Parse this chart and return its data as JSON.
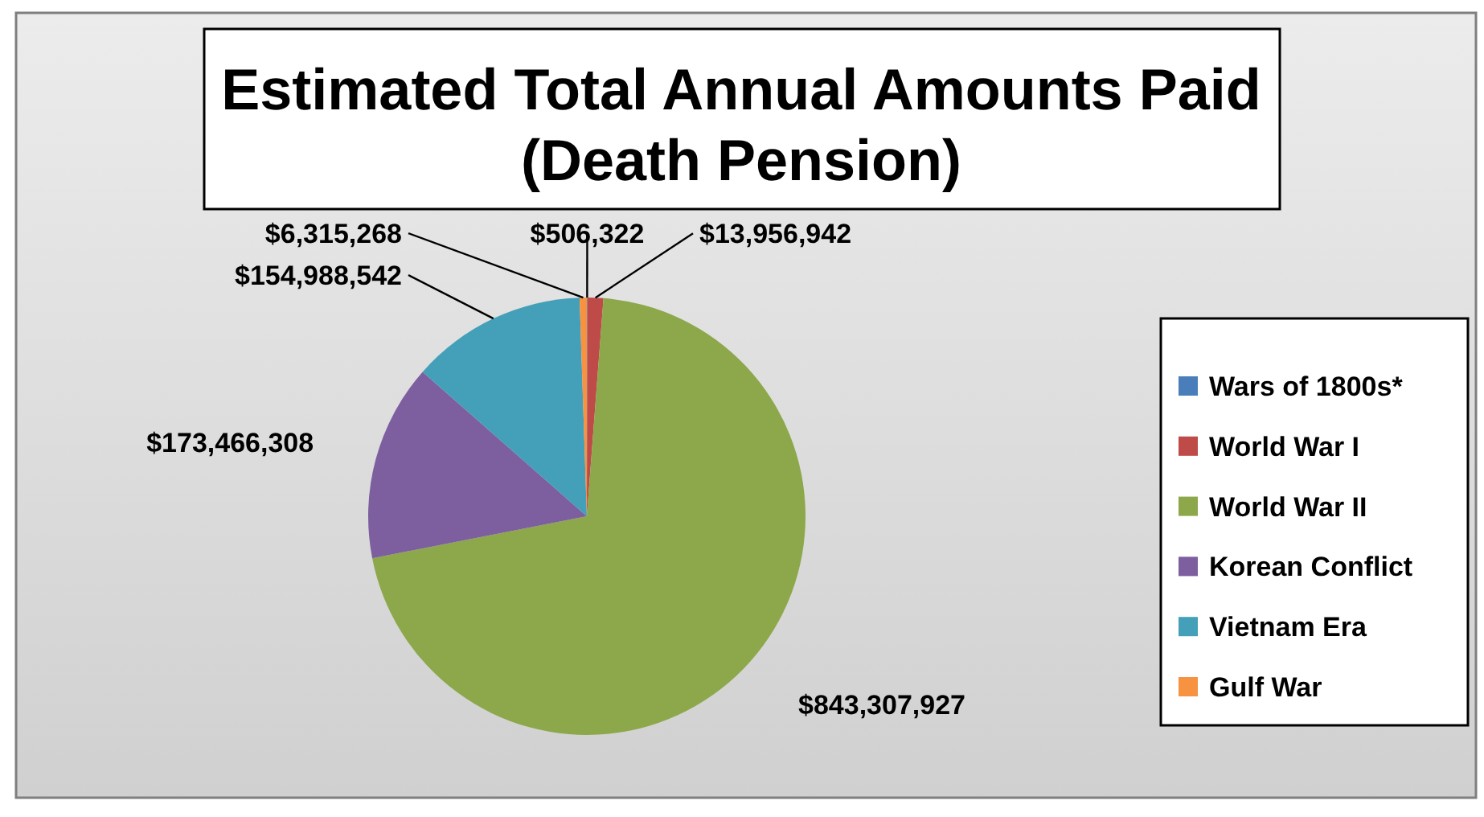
{
  "chart_data": {
    "type": "pie",
    "title": "Estimated Total Annual Amounts Paid\n(Death Pension)",
    "categories": [
      "Wars of 1800s*",
      "World War I",
      "World War II",
      "Korean Conflict",
      "Vietnam Era",
      "Gulf War"
    ],
    "values": [
      506322,
      13956942,
      843307927,
      173466308,
      154988542,
      6315268
    ],
    "value_labels": [
      "$506,322",
      "$13,956,942",
      "$843,307,927",
      "$173,466,308",
      "$154,988,542",
      "$6,315,268"
    ],
    "colors": [
      "#4a7ebb",
      "#be4b48",
      "#8ca84b",
      "#7d5fa0",
      "#43a0b8",
      "#f69240"
    ],
    "legend": "right"
  }
}
